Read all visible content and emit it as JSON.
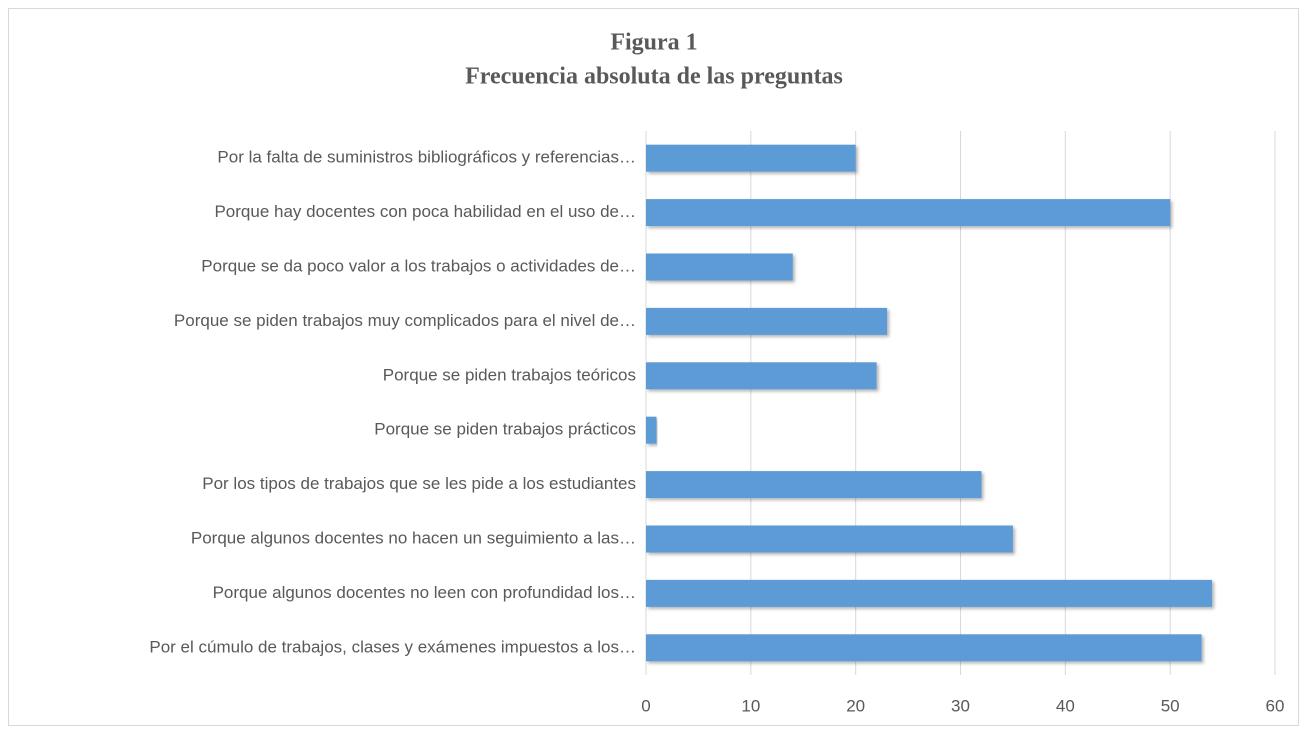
{
  "chart_data": {
    "type": "bar",
    "orientation": "horizontal",
    "title": "Figura  1",
    "subtitle": "Frecuencia absoluta de las preguntas",
    "categories": [
      "Por la falta de suministros bibliográficos y referencias…",
      "Porque hay docentes con poca habilidad en el uso de…",
      "Porque se da poco valor a los trabajos o actividades de…",
      "Porque se piden trabajos muy complicados para el nivel de…",
      "Porque se piden trabajos teóricos",
      "Porque se piden trabajos prácticos",
      "Por los tipos de trabajos que se les pide a los estudiantes",
      "Porque algunos docentes no hacen un seguimiento a las…",
      "Porque algunos docentes no leen con profundidad los…",
      "Por el cúmulo de trabajos, clases y exámenes impuestos a los…"
    ],
    "values": [
      20,
      50,
      14,
      23,
      22,
      1,
      32,
      35,
      54,
      53
    ],
    "color": "#5b9bd5",
    "xlim": [
      0,
      60
    ],
    "xticks": [
      0,
      10,
      20,
      30,
      40,
      50,
      60
    ],
    "grid": true
  }
}
